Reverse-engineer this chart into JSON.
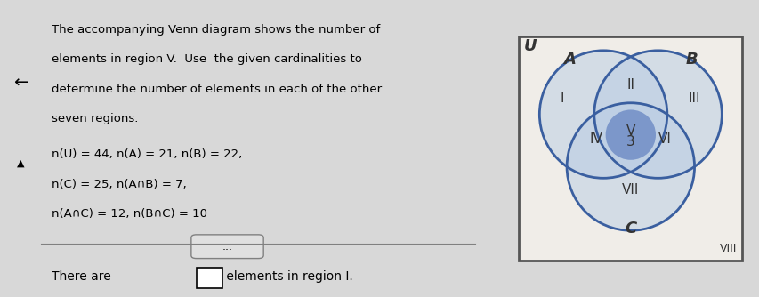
{
  "text_left": [
    "The accompanying Venn diagram shows the number of",
    "elements in region V.  Use  the given cardinalities to",
    "determine the number of elements in each of the other",
    "seven regions.",
    "n(U) = 44, n(A) = 21, n(B) = 22,",
    "n(C) = 25, n(A∩B) = 7,",
    "n(A∩C) = 12, n(B∩C) = 10"
  ],
  "bottom_text_1": "There are ",
  "bottom_text_2": " elements in region I.",
  "bg_color": "#d8d8d8",
  "panel_color": "#e8e8e8",
  "venn_bg": "#f5f5f0",
  "circle_edge_color": "#3a5fa0",
  "circle_fill_light": "#a8bde0",
  "circle_fill_dark": "#6080c0",
  "label_A": "A",
  "label_B": "B",
  "label_C": "C",
  "label_U": "U",
  "region_labels": [
    "I",
    "II",
    "III",
    "IV",
    "V",
    "VI",
    "VII",
    "VIII"
  ],
  "region_V_value": "3",
  "left_arrow": "←",
  "up_arrow": "▲"
}
